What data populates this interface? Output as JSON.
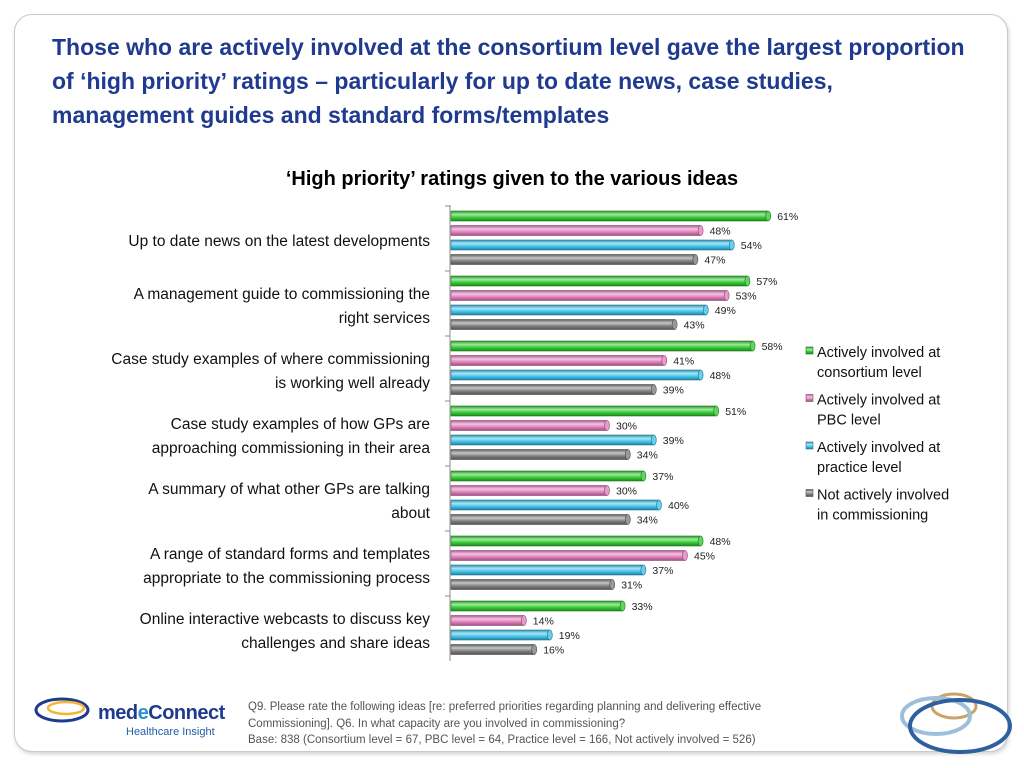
{
  "slide": {
    "title": "Those who are actively involved at the consortium level gave the largest proportion of ‘high priority’ ratings – particularly for up to date news, case studies, management guides and standard forms/templates",
    "footnote_lines": [
      "Q9. Please rate the following ideas [re: preferred priorities regarding planning and delivering effective",
      "Commissioning].  Q6. In what capacity are you involved in commissioning?",
      "Base: 838 (Consortium level = 67, PBC level = 64, Practice level = 166, Not actively involved = 526)"
    ],
    "logo": {
      "name_part1": "med",
      "name_part2": "e",
      "name_part3": "Connect",
      "subtitle": "Healthcare Insight"
    }
  },
  "chart_data": {
    "type": "bar",
    "orientation": "horizontal",
    "title": "‘High priority’ ratings given to the various ideas",
    "xlim": [
      0,
      100
    ],
    "unit": "%",
    "grid": false,
    "legend_position": "right",
    "categories": [
      [
        "Up to date news on the latest developments"
      ],
      [
        "A management guide to commissioning the",
        "right services"
      ],
      [
        "Case study examples of where commissioning",
        "is working well already"
      ],
      [
        "Case study examples of how GPs are",
        "approaching commissioning in their area"
      ],
      [
        "A summary of what other GPs are talking",
        "about"
      ],
      [
        "A range of standard forms and templates",
        "appropriate to the commissioning process"
      ],
      [
        "Online interactive webcasts to discuss key",
        "challenges and share ideas"
      ]
    ],
    "series": [
      {
        "name": [
          "Actively involved at",
          "consortium level"
        ],
        "color": "#33cc33",
        "values": [
          61,
          57,
          58,
          51,
          37,
          48,
          33
        ]
      },
      {
        "name": [
          "Actively involved at",
          "PBC level"
        ],
        "color": "#e57fbf",
        "values": [
          48,
          53,
          41,
          30,
          30,
          45,
          14
        ]
      },
      {
        "name": [
          "Actively involved at",
          "practice level"
        ],
        "color": "#3fc3ec",
        "values": [
          54,
          49,
          48,
          39,
          40,
          37,
          19
        ]
      },
      {
        "name": [
          "Not actively involved",
          "in commissioning"
        ],
        "color": "#808080",
        "values": [
          47,
          43,
          39,
          34,
          34,
          31,
          16
        ]
      }
    ]
  }
}
